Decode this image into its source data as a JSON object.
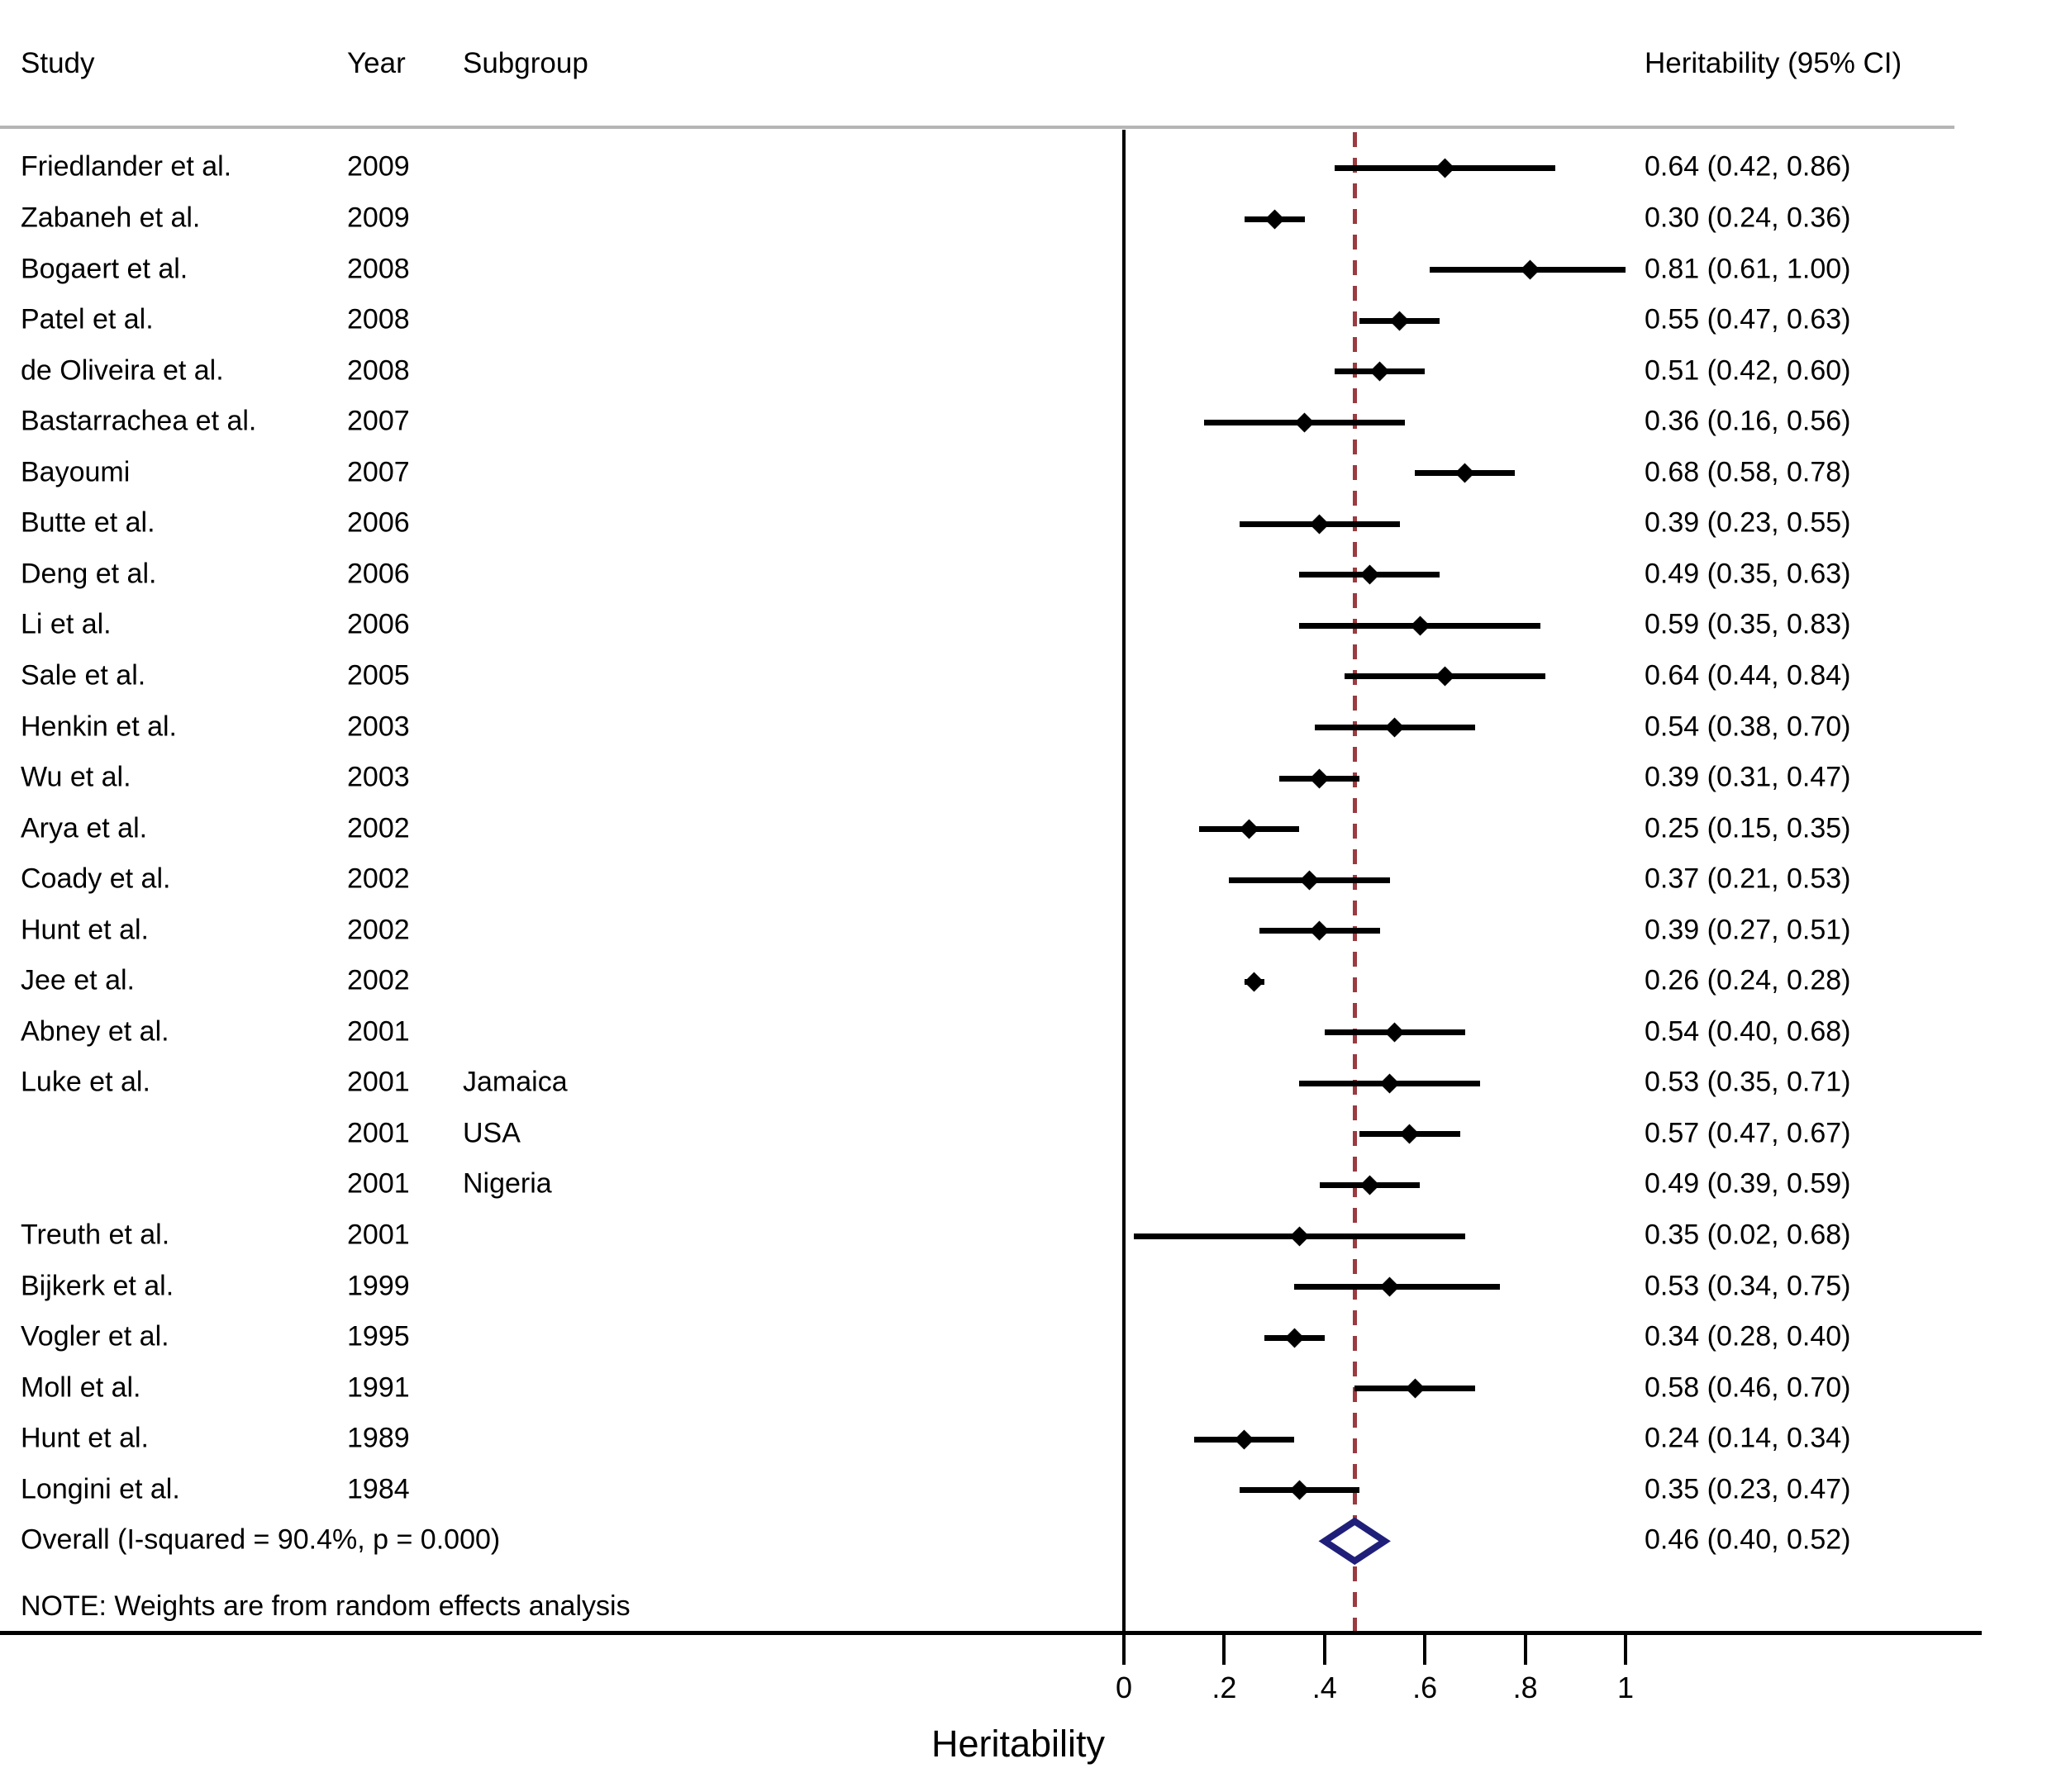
{
  "header": {
    "study": "Study",
    "year": "Year",
    "subgroup": "Subgroup",
    "heritability": "Heritability (95% CI)"
  },
  "note": "NOTE: Weights are from random effects analysis",
  "colors": {
    "text": "#000000",
    "ci_line": "#000000",
    "reference_line": "#9b3a3f",
    "overall_diamond": "#1f1f7a",
    "header_rule": "#b5b5b5",
    "axis": "#000000"
  },
  "chart_data": {
    "type": "scatter",
    "subtype": "forest-plot",
    "title": "",
    "xlabel": "Heritability",
    "x_axis": {
      "tick_values": [
        0,
        0.2,
        0.4,
        0.6,
        0.8,
        1
      ],
      "tick_labels": [
        "0",
        ".2",
        ".4",
        ".6",
        ".8",
        "1"
      ],
      "title": "Heritability"
    },
    "reference_line": 0.46,
    "studies": [
      {
        "study": "Friedlander et al.",
        "year": "2009",
        "subgroup": "",
        "estimate": 0.64,
        "ci_low": 0.42,
        "ci_high": 0.86,
        "ci": "0.64 (0.42, 0.86)"
      },
      {
        "study": "Zabaneh et al.",
        "year": "2009",
        "subgroup": "",
        "estimate": 0.3,
        "ci_low": 0.24,
        "ci_high": 0.36,
        "ci": "0.30 (0.24, 0.36)"
      },
      {
        "study": "Bogaert et al.",
        "year": "2008",
        "subgroup": "",
        "estimate": 0.81,
        "ci_low": 0.61,
        "ci_high": 1.0,
        "ci": "0.81 (0.61, 1.00)"
      },
      {
        "study": "Patel et al.",
        "year": "2008",
        "subgroup": "",
        "estimate": 0.55,
        "ci_low": 0.47,
        "ci_high": 0.63,
        "ci": "0.55 (0.47, 0.63)"
      },
      {
        "study": "de Oliveira et al.",
        "year": "2008",
        "subgroup": "",
        "estimate": 0.51,
        "ci_low": 0.42,
        "ci_high": 0.6,
        "ci": "0.51 (0.42, 0.60)"
      },
      {
        "study": "Bastarrachea et al.",
        "year": "2007",
        "subgroup": "",
        "estimate": 0.36,
        "ci_low": 0.16,
        "ci_high": 0.56,
        "ci": "0.36 (0.16, 0.56)"
      },
      {
        "study": "Bayoumi",
        "year": "2007",
        "subgroup": "",
        "estimate": 0.68,
        "ci_low": 0.58,
        "ci_high": 0.78,
        "ci": "0.68 (0.58, 0.78)"
      },
      {
        "study": "Butte et al.",
        "year": "2006",
        "subgroup": "",
        "estimate": 0.39,
        "ci_low": 0.23,
        "ci_high": 0.55,
        "ci": "0.39 (0.23, 0.55)"
      },
      {
        "study": "Deng et al.",
        "year": "2006",
        "subgroup": "",
        "estimate": 0.49,
        "ci_low": 0.35,
        "ci_high": 0.63,
        "ci": "0.49 (0.35, 0.63)"
      },
      {
        "study": "Li et al.",
        "year": "2006",
        "subgroup": "",
        "estimate": 0.59,
        "ci_low": 0.35,
        "ci_high": 0.83,
        "ci": "0.59 (0.35, 0.83)"
      },
      {
        "study": "Sale et al.",
        "year": "2005",
        "subgroup": "",
        "estimate": 0.64,
        "ci_low": 0.44,
        "ci_high": 0.84,
        "ci": "0.64 (0.44, 0.84)"
      },
      {
        "study": "Henkin et al.",
        "year": "2003",
        "subgroup": "",
        "estimate": 0.54,
        "ci_low": 0.38,
        "ci_high": 0.7,
        "ci": "0.54 (0.38, 0.70)"
      },
      {
        "study": "Wu et al.",
        "year": "2003",
        "subgroup": "",
        "estimate": 0.39,
        "ci_low": 0.31,
        "ci_high": 0.47,
        "ci": "0.39 (0.31, 0.47)"
      },
      {
        "study": "Arya et al.",
        "year": "2002",
        "subgroup": "",
        "estimate": 0.25,
        "ci_low": 0.15,
        "ci_high": 0.35,
        "ci": "0.25 (0.15, 0.35)"
      },
      {
        "study": "Coady et al.",
        "year": "2002",
        "subgroup": "",
        "estimate": 0.37,
        "ci_low": 0.21,
        "ci_high": 0.53,
        "ci": "0.37 (0.21, 0.53)"
      },
      {
        "study": "Hunt et al.",
        "year": "2002",
        "subgroup": "",
        "estimate": 0.39,
        "ci_low": 0.27,
        "ci_high": 0.51,
        "ci": "0.39 (0.27, 0.51)"
      },
      {
        "study": "Jee et al.",
        "year": "2002",
        "subgroup": "",
        "estimate": 0.26,
        "ci_low": 0.24,
        "ci_high": 0.28,
        "ci": "0.26 (0.24, 0.28)"
      },
      {
        "study": "Abney et al.",
        "year": "2001",
        "subgroup": "",
        "estimate": 0.54,
        "ci_low": 0.4,
        "ci_high": 0.68,
        "ci": "0.54 (0.40, 0.68)"
      },
      {
        "study": "Luke et al.",
        "year": "2001",
        "subgroup": "Jamaica",
        "estimate": 0.53,
        "ci_low": 0.35,
        "ci_high": 0.71,
        "ci": "0.53 (0.35, 0.71)"
      },
      {
        "study": "",
        "year": "2001",
        "subgroup": "USA",
        "estimate": 0.57,
        "ci_low": 0.47,
        "ci_high": 0.67,
        "ci": "0.57 (0.47, 0.67)"
      },
      {
        "study": "",
        "year": "2001",
        "subgroup": "Nigeria",
        "estimate": 0.49,
        "ci_low": 0.39,
        "ci_high": 0.59,
        "ci": "0.49 (0.39, 0.59)"
      },
      {
        "study": "Treuth et al.",
        "year": "2001",
        "subgroup": "",
        "estimate": 0.35,
        "ci_low": 0.02,
        "ci_high": 0.68,
        "ci": "0.35 (0.02, 0.68)"
      },
      {
        "study": "Bijkerk et al.",
        "year": "1999",
        "subgroup": "",
        "estimate": 0.53,
        "ci_low": 0.34,
        "ci_high": 0.75,
        "ci": "0.53 (0.34, 0.75)"
      },
      {
        "study": "Vogler et al.",
        "year": "1995",
        "subgroup": "",
        "estimate": 0.34,
        "ci_low": 0.28,
        "ci_high": 0.4,
        "ci": "0.34 (0.28, 0.40)"
      },
      {
        "study": "Moll et al.",
        "year": "1991",
        "subgroup": "",
        "estimate": 0.58,
        "ci_low": 0.46,
        "ci_high": 0.7,
        "ci": "0.58 (0.46, 0.70)"
      },
      {
        "study": "Hunt et al.",
        "year": "1989",
        "subgroup": "",
        "estimate": 0.24,
        "ci_low": 0.14,
        "ci_high": 0.34,
        "ci": "0.24 (0.14, 0.34)"
      },
      {
        "study": "Longini et al.",
        "year": "1984",
        "subgroup": "",
        "estimate": 0.35,
        "ci_low": 0.23,
        "ci_high": 0.47,
        "ci": "0.35 (0.23, 0.47)"
      }
    ],
    "overall": {
      "label": "Overall  (I-squared = 90.4%, p = 0.000)",
      "estimate": 0.46,
      "ci_low": 0.4,
      "ci_high": 0.52,
      "ci": "0.46 (0.40, 0.52)"
    },
    "note": "NOTE: Weights are from random effects analysis"
  }
}
